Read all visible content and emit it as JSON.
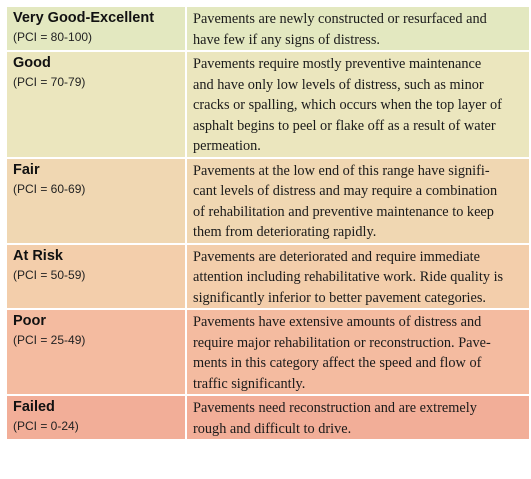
{
  "rows": [
    {
      "category": "Very Good-Excellent",
      "pci": "(PCI = 80-100)",
      "color": "#e3e8c0",
      "lines": [
        "Pavements are newly constructed or resurfaced and",
        "have few if any signs of distress."
      ]
    },
    {
      "category": "Good",
      "pci": "(PCI = 70-79)",
      "color": "#ebe6be",
      "lines": [
        "Pavements require mostly preventive maintenance",
        "and have only low levels of distress, such as minor",
        "cracks or spalling, which occurs when the top layer of",
        "asphalt begins to peel or flake off as a result of water",
        "permeation."
      ]
    },
    {
      "category": "Fair",
      "pci": "(PCI = 60-69)",
      "color": "#f0d7b2",
      "lines": [
        "Pavements at the low end of this range have signifi-",
        "cant levels of distress and may require a combination",
        "of rehabilitation and preventive maintenance to keep",
        "them from deteriorating rapidly."
      ]
    },
    {
      "category": "At Risk",
      "pci": "(PCI = 50-59)",
      "color": "#f3ceab",
      "lines": [
        "Pavements are deteriorated and require immediate",
        "attention including rehabilitative work. Ride quality is",
        "significantly inferior to better pavement categories."
      ]
    },
    {
      "category": "Poor",
      "pci": "(PCI = 25-49)",
      "color": "#f4bba0",
      "lines": [
        "Pavements have extensive amounts of distress and",
        "require major rehabilitation or reconstruction. Pave-",
        "ments in this category affect the speed and flow of",
        "traffic significantly."
      ]
    },
    {
      "category": "Failed",
      "pci": "(PCI = 0-24)",
      "color": "#f2ae98",
      "lines": [
        "Pavements need reconstruction and are extremely",
        "rough and difficult to drive."
      ]
    }
  ]
}
